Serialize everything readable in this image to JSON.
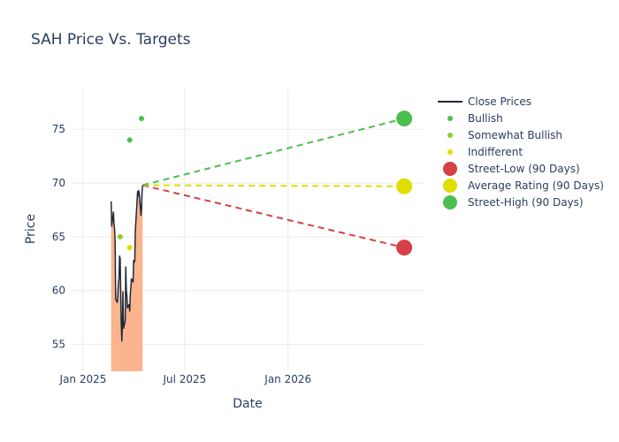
{
  "chart_data": {
    "type": "line",
    "title": "SAH Price Vs. Targets",
    "xlabel": "Date",
    "ylabel": "Price",
    "xlim": [
      "2024-12-10",
      "2026-09-01"
    ],
    "ylim": [
      52.5,
      78.8
    ],
    "x_ticks": [
      {
        "date": "2025-01-01",
        "label": "Jan 2025"
      },
      {
        "date": "2025-07-01",
        "label": "Jul 2025"
      },
      {
        "date": "2026-01-01",
        "label": "Jan 2026"
      }
    ],
    "y_ticks": [
      55,
      60,
      65,
      70,
      75
    ],
    "grid": true,
    "legend_position": "right",
    "colors": {
      "close": "#1f2937",
      "fill": "#fbb48e",
      "bullish": "#4cbf4f",
      "somewhat_bullish": "#8fce2c",
      "indifferent": "#e0dd00",
      "street_low": "#d64046",
      "average": "#e0dd00",
      "street_high": "#4cbf4f"
    },
    "legend": [
      {
        "key": "close",
        "label": "Close Prices",
        "symbol": "line"
      },
      {
        "key": "bullish",
        "label": "Bullish",
        "symbol": "dot"
      },
      {
        "key": "somewhat_bullish",
        "label": "Somewhat Bullish",
        "symbol": "dot"
      },
      {
        "key": "indifferent",
        "label": "Indifferent",
        "symbol": "dot"
      },
      {
        "key": "street_low",
        "label": "Street-Low (90 Days)",
        "symbol": "big"
      },
      {
        "key": "average",
        "label": "Average Rating (90 Days)",
        "symbol": "big"
      },
      {
        "key": "street_high",
        "label": "Street-High (90 Days)",
        "symbol": "big"
      }
    ],
    "close_prices": [
      [
        "2025-02-20",
        68.3
      ],
      [
        "2025-02-21",
        66.0
      ],
      [
        "2025-02-24",
        67.3
      ],
      [
        "2025-02-25",
        66.2
      ],
      [
        "2025-02-26",
        65.8
      ],
      [
        "2025-02-27",
        64.5
      ],
      [
        "2025-02-28",
        59.2
      ],
      [
        "2025-03-03",
        58.9
      ],
      [
        "2025-03-04",
        59.8
      ],
      [
        "2025-03-05",
        60.8
      ],
      [
        "2025-03-06",
        61.2
      ],
      [
        "2025-03-07",
        63.2
      ],
      [
        "2025-03-08",
        63.0
      ],
      [
        "2025-03-10",
        57.0
      ],
      [
        "2025-03-11",
        55.3
      ],
      [
        "2025-03-12",
        56.9
      ],
      [
        "2025-03-13",
        59.9
      ],
      [
        "2025-03-14",
        56.5
      ],
      [
        "2025-03-17",
        57.2
      ],
      [
        "2025-03-18",
        62.2
      ],
      [
        "2025-03-19",
        60.0
      ],
      [
        "2025-03-20",
        59.5
      ],
      [
        "2025-03-21",
        58.4
      ],
      [
        "2025-03-24",
        58.7
      ],
      [
        "2025-03-25",
        58.1
      ],
      [
        "2025-03-26",
        59.6
      ],
      [
        "2025-03-27",
        60.2
      ],
      [
        "2025-03-28",
        61.1
      ],
      [
        "2025-03-31",
        60.8
      ],
      [
        "2025-04-01",
        62.8
      ],
      [
        "2025-04-02",
        62.6
      ],
      [
        "2025-04-03",
        62.8
      ],
      [
        "2025-04-04",
        65.5
      ],
      [
        "2025-04-07",
        68.2
      ],
      [
        "2025-04-08",
        69.2
      ],
      [
        "2025-04-09",
        68.8
      ],
      [
        "2025-04-10",
        69.3
      ],
      [
        "2025-04-11",
        69.0
      ],
      [
        "2025-04-14",
        67.0
      ],
      [
        "2025-04-15",
        67.6
      ],
      [
        "2025-04-16",
        69.1
      ],
      [
        "2025-04-17",
        69.8
      ]
    ],
    "ratings": [
      {
        "date": "2025-03-08",
        "price": 65,
        "type": "somewhat_bullish"
      },
      {
        "date": "2025-03-25",
        "price": 64,
        "type": "indifferent"
      },
      {
        "date": "2025-03-25",
        "price": 74,
        "type": "bullish"
      },
      {
        "date": "2025-04-15",
        "price": 76,
        "type": "bullish"
      }
    ],
    "targets": {
      "start": {
        "date": "2025-04-17",
        "price": 69.8
      },
      "end_date": "2026-07-27",
      "street_low": 64.0,
      "average": 69.7,
      "street_high": 76.0
    }
  }
}
